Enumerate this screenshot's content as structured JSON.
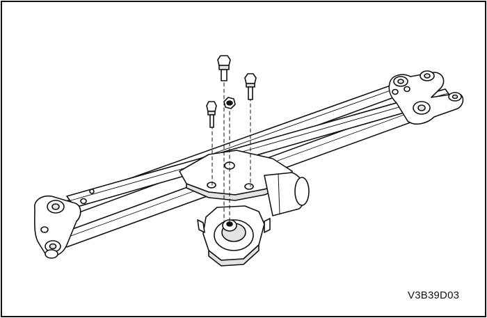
{
  "figure": {
    "code": "V3B39D03"
  },
  "colors": {
    "line": "#111111",
    "shade": "#e3e3e3",
    "paper": "#ffffff"
  }
}
